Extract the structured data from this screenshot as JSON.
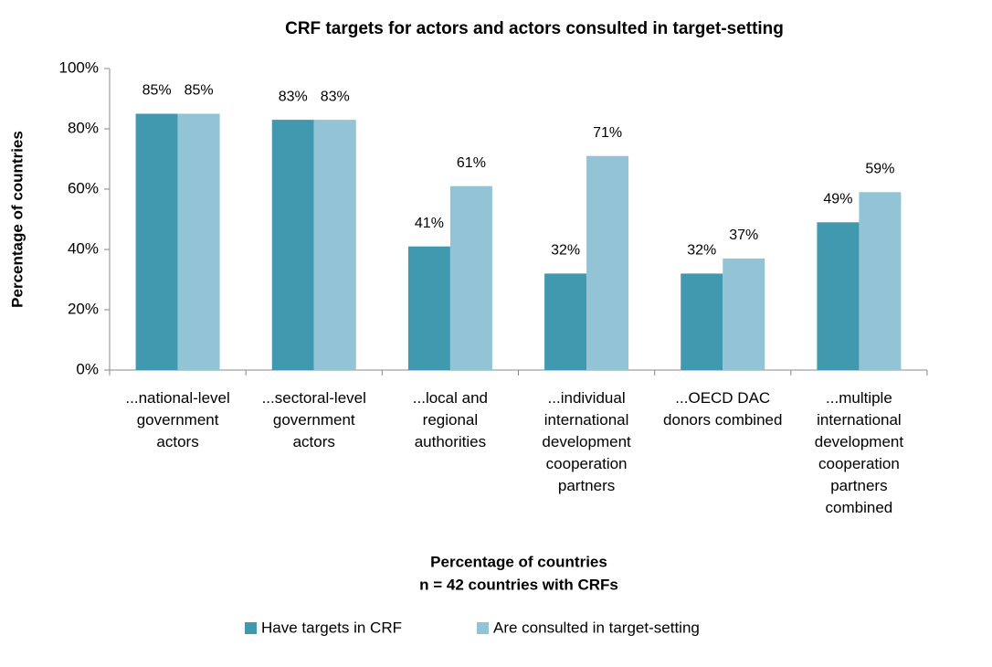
{
  "chart_data": {
    "type": "bar",
    "title": "CRF targets for actors and actors consulted in target-setting",
    "ylabel": "Percentage of countries",
    "xlabel": "Percentage of countries",
    "note": "n = 42 countries with CRFs",
    "categories": [
      "...national-level government actors",
      "...sectoral-level government actors",
      "...local and regional authorities",
      "...individual international development cooperation partners",
      "...OECD DAC donors combined",
      "...multiple international development cooperation partners combined"
    ],
    "series": [
      {
        "name": "Have targets in CRF",
        "color": "#4199b0",
        "values": [
          85,
          83,
          41,
          32,
          32,
          49
        ],
        "value_labels": [
          "85%",
          "83%",
          "41%",
          "32%",
          "32%",
          "49%"
        ]
      },
      {
        "name": "Are consulted in target-setting",
        "color": "#93c4d6",
        "values": [
          85,
          83,
          61,
          71,
          37,
          59
        ],
        "value_labels": [
          "85%",
          "83%",
          "61%",
          "71%",
          "37%",
          "59%"
        ]
      }
    ],
    "ylim": [
      0,
      100
    ],
    "yticks": [
      {
        "value": 0,
        "label": "0%"
      },
      {
        "value": 20,
        "label": "20%"
      },
      {
        "value": 40,
        "label": "40%"
      },
      {
        "value": 60,
        "label": "60%"
      },
      {
        "value": 80,
        "label": "80%"
      },
      {
        "value": 100,
        "label": "100%"
      }
    ],
    "grid": false,
    "legend": "bottom"
  }
}
